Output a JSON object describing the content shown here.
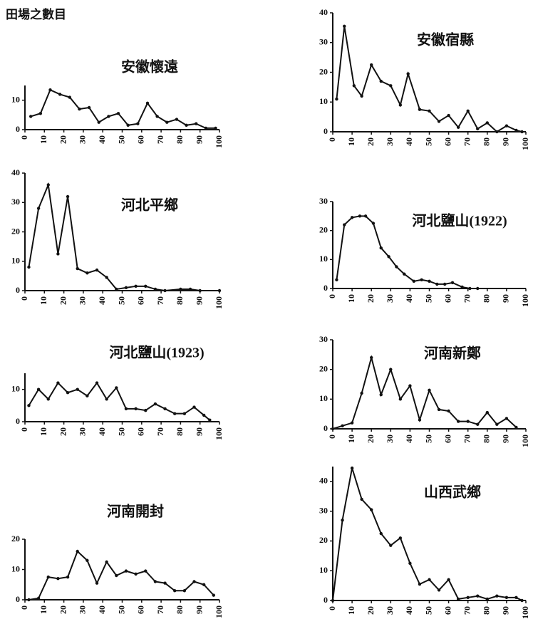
{
  "header": {
    "title": "田場之數目"
  },
  "chart_data": [
    {
      "type": "line",
      "title": "安徽懷遠",
      "xlim": [
        0,
        100
      ],
      "xticks": [
        0,
        10,
        20,
        30,
        40,
        50,
        60,
        70,
        80,
        90,
        100
      ],
      "ylim": [
        0,
        15
      ],
      "yticks": [
        0,
        10
      ],
      "x": [
        3,
        8,
        13,
        18,
        23,
        28,
        33,
        38,
        43,
        48,
        53,
        58,
        63,
        68,
        73,
        78,
        83,
        88,
        93,
        98
      ],
      "values": [
        4.5,
        5.5,
        13.5,
        12,
        11,
        7,
        7.5,
        2.5,
        4.5,
        5.5,
        1.5,
        2,
        9,
        4.5,
        2.5,
        3.5,
        1.5,
        2,
        0.5,
        0.5
      ]
    },
    {
      "type": "line",
      "title": "安徽宿縣",
      "xlim": [
        0,
        100
      ],
      "xticks": [
        0,
        10,
        20,
        30,
        40,
        50,
        60,
        70,
        80,
        90,
        100
      ],
      "ylim": [
        0,
        40
      ],
      "yticks": [
        0,
        10,
        20,
        30,
        40
      ],
      "x": [
        2,
        6,
        11,
        15,
        20,
        25,
        30,
        35,
        39,
        45,
        50,
        55,
        60,
        65,
        70,
        75,
        80,
        85,
        90,
        95,
        98
      ],
      "values": [
        11,
        35.5,
        15.5,
        12,
        22.5,
        17,
        15.5,
        9,
        19.5,
        7.5,
        7,
        3.5,
        5.5,
        1.5,
        7,
        1,
        3,
        0,
        2,
        0.5,
        0
      ]
    },
    {
      "type": "line",
      "title": "河北平鄉",
      "xlim": [
        0,
        100
      ],
      "xticks": [
        0,
        10,
        20,
        30,
        40,
        50,
        60,
        70,
        80,
        90,
        100
      ],
      "ylim": [
        0,
        40
      ],
      "yticks": [
        0,
        10,
        20,
        30,
        40
      ],
      "x": [
        2,
        7,
        12,
        17,
        22,
        27,
        32,
        37,
        42,
        47,
        52,
        57,
        62,
        67,
        72,
        80,
        85,
        90,
        100
      ],
      "values": [
        8,
        28,
        36,
        12.5,
        32,
        7.5,
        6,
        7,
        4.5,
        0.5,
        1,
        1.5,
        1.5,
        0.5,
        0,
        0.5,
        0.5,
        0,
        0
      ]
    },
    {
      "type": "line",
      "title": "河北鹽山(1922)",
      "xlim": [
        0,
        100
      ],
      "xticks": [
        0,
        10,
        20,
        30,
        40,
        50,
        60,
        70,
        80,
        90,
        100
      ],
      "ylim": [
        0,
        30
      ],
      "yticks": [
        0,
        10,
        20,
        30
      ],
      "x": [
        2,
        6,
        10,
        14,
        17,
        21,
        25,
        29,
        33,
        37,
        42,
        46,
        50,
        54,
        58,
        62,
        67,
        71,
        75
      ],
      "values": [
        3,
        22,
        24.5,
        25,
        25,
        22.5,
        14,
        11,
        7.5,
        5,
        2.5,
        3,
        2.5,
        1.5,
        1.5,
        2,
        0.5,
        0,
        0
      ]
    },
    {
      "type": "line",
      "title": "河北鹽山(1923)",
      "xlim": [
        0,
        100
      ],
      "xticks": [
        0,
        10,
        20,
        30,
        40,
        50,
        60,
        70,
        80,
        90,
        100
      ],
      "ylim": [
        0,
        15
      ],
      "yticks": [
        0,
        10
      ],
      "x": [
        2,
        7,
        12,
        17,
        22,
        27,
        32,
        37,
        42,
        47,
        52,
        57,
        62,
        67,
        72,
        77,
        82,
        87,
        92,
        95
      ],
      "values": [
        5,
        10,
        7,
        12,
        9,
        10,
        8,
        12,
        7,
        10.5,
        4,
        4,
        3.5,
        5.5,
        4,
        2.5,
        2.5,
        4.5,
        2,
        0.5
      ]
    },
    {
      "type": "line",
      "title": "河南新鄭",
      "xlim": [
        0,
        100
      ],
      "xticks": [
        0,
        10,
        20,
        30,
        40,
        50,
        60,
        70,
        80,
        90,
        100
      ],
      "ylim": [
        0,
        30
      ],
      "yticks": [
        0,
        10,
        20,
        30
      ],
      "x": [
        0,
        5,
        10,
        15,
        20,
        25,
        30,
        35,
        40,
        45,
        50,
        55,
        60,
        65,
        70,
        75,
        80,
        85,
        90,
        95
      ],
      "values": [
        0,
        1,
        2,
        12,
        24,
        11.5,
        20,
        10,
        14.5,
        3,
        13,
        6.5,
        6,
        2.5,
        2.5,
        1.5,
        5.5,
        1.5,
        3.5,
        0.5
      ]
    },
    {
      "type": "line",
      "title": "河南開封",
      "xlim": [
        0,
        100
      ],
      "xticks": [
        0,
        10,
        20,
        30,
        40,
        50,
        60,
        70,
        80,
        90,
        100
      ],
      "ylim": [
        0,
        20
      ],
      "yticks": [
        0,
        10,
        20
      ],
      "x": [
        2,
        7,
        12,
        17,
        22,
        27,
        32,
        37,
        42,
        47,
        52,
        57,
        62,
        67,
        72,
        77,
        82,
        87,
        92,
        97
      ],
      "values": [
        0,
        0.5,
        7.5,
        7,
        7.5,
        16,
        13,
        5.5,
        12.5,
        8,
        9.5,
        8.5,
        9.5,
        6,
        5.5,
        3,
        3,
        6,
        5,
        1.5
      ]
    },
    {
      "type": "line",
      "title": "山西武鄉",
      "xlim": [
        0,
        100
      ],
      "xticks": [
        0,
        10,
        20,
        30,
        40,
        50,
        60,
        70,
        80,
        90,
        100
      ],
      "ylim": [
        0,
        45
      ],
      "yticks": [
        0,
        10,
        20,
        30,
        40
      ],
      "x": [
        0,
        5,
        10,
        15,
        20,
        25,
        30,
        35,
        40,
        45,
        50,
        55,
        60,
        65,
        70,
        75,
        80,
        85,
        90,
        95,
        98
      ],
      "values": [
        0,
        27,
        44.5,
        34,
        30.5,
        22.5,
        18.5,
        21,
        12.5,
        5.5,
        7,
        3.5,
        7,
        0.5,
        1,
        1.5,
        0.5,
        1.5,
        1,
        1,
        0
      ]
    }
  ]
}
